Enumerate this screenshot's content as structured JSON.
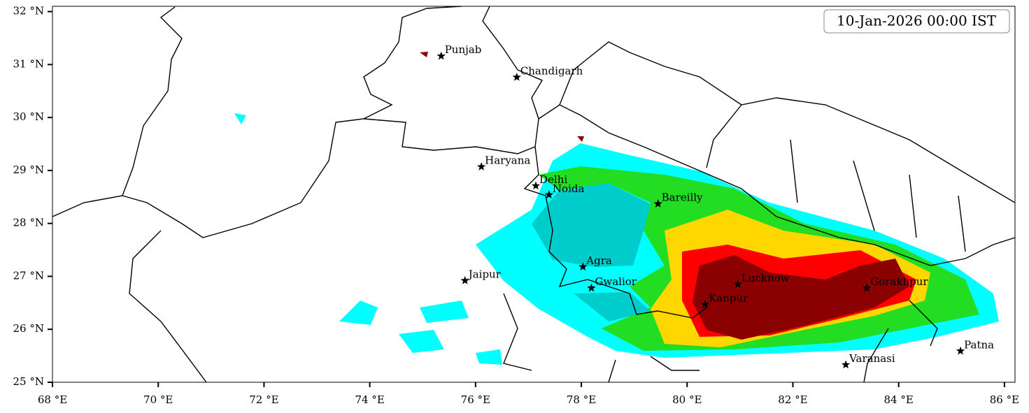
{
  "map": {
    "timestamp": "10-Jan-2026 00:00 IST",
    "xlim": [
      68,
      86.2
    ],
    "ylim": [
      25,
      32.1
    ],
    "xticks": [
      {
        "value": 68,
        "label": "68 °E"
      },
      {
        "value": 70,
        "label": "70 °E"
      },
      {
        "value": 72,
        "label": "72 °E"
      },
      {
        "value": 74,
        "label": "74 °E"
      },
      {
        "value": 76,
        "label": "76 °E"
      },
      {
        "value": 78,
        "label": "78 °E"
      },
      {
        "value": 80,
        "label": "80 °E"
      },
      {
        "value": 82,
        "label": "82 °E"
      },
      {
        "value": 84,
        "label": "84 °E"
      },
      {
        "value": 86,
        "label": "86 °E"
      }
    ],
    "yticks": [
      {
        "value": 25,
        "label": "25 °N"
      },
      {
        "value": 26,
        "label": "26 °N"
      },
      {
        "value": 27,
        "label": "27 °N"
      },
      {
        "value": 28,
        "label": "28 °N"
      },
      {
        "value": 29,
        "label": "29 °N"
      },
      {
        "value": 30,
        "label": "30 °N"
      },
      {
        "value": 31,
        "label": "31 °N"
      },
      {
        "value": 32,
        "label": "32 °N"
      }
    ],
    "cities": [
      {
        "name": "Punjab",
        "lon": 75.35,
        "lat": 31.16
      },
      {
        "name": "Chandigarh",
        "lon": 76.78,
        "lat": 30.76
      },
      {
        "name": "Haryana",
        "lon": 76.11,
        "lat": 29.07
      },
      {
        "name": "Delhi",
        "lon": 77.14,
        "lat": 28.71
      },
      {
        "name": "Noida",
        "lon": 77.39,
        "lat": 28.54
      },
      {
        "name": "Bareilly",
        "lon": 79.45,
        "lat": 28.37
      },
      {
        "name": "Agra",
        "lon": 78.03,
        "lat": 27.18
      },
      {
        "name": "Jaipur",
        "lon": 75.8,
        "lat": 26.92
      },
      {
        "name": "Gwalior",
        "lon": 78.19,
        "lat": 26.78
      },
      {
        "name": "Lucknow",
        "lon": 80.96,
        "lat": 26.85
      },
      {
        "name": "Kanpur",
        "lon": 80.34,
        "lat": 26.47
      },
      {
        "name": "Gorakhpur",
        "lon": 83.4,
        "lat": 26.78
      },
      {
        "name": "Varanasi",
        "lon": 83.0,
        "lat": 25.33
      },
      {
        "name": "Patna",
        "lon": 85.17,
        "lat": 25.59
      }
    ]
  }
}
